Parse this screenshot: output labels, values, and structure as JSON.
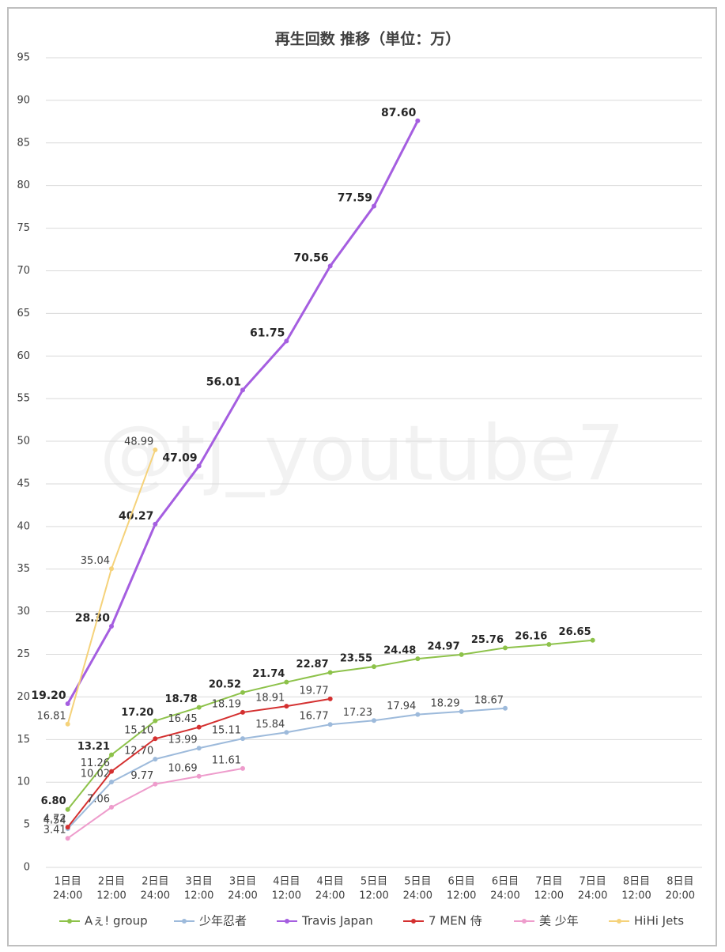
{
  "chart_data": {
    "type": "line",
    "title": "再生回数 推移（単位：万）",
    "watermark": "@tj_youtube7",
    "categories": [
      [
        "1日目",
        "24:00"
      ],
      [
        "2日目",
        "12:00"
      ],
      [
        "2日目",
        "24:00"
      ],
      [
        "3日目",
        "12:00"
      ],
      [
        "3日目",
        "24:00"
      ],
      [
        "4日目",
        "12:00"
      ],
      [
        "4日目",
        "24:00"
      ],
      [
        "5日目",
        "12:00"
      ],
      [
        "5日目",
        "24:00"
      ],
      [
        "6日目",
        "12:00"
      ],
      [
        "6日目",
        "24:00"
      ],
      [
        "7日目",
        "12:00"
      ],
      [
        "7日目",
        "24:00"
      ],
      [
        "8日目",
        "12:00"
      ],
      [
        "8日目",
        "20:00"
      ]
    ],
    "ylim": [
      0,
      95
    ],
    "yticks": [
      0,
      5,
      10,
      15,
      20,
      25,
      30,
      35,
      40,
      45,
      50,
      55,
      60,
      65,
      70,
      75,
      80,
      85,
      90,
      95
    ],
    "grid": true,
    "legend": "bottom",
    "series": [
      {
        "name": "Aぇ! group",
        "color": "#8dc24a",
        "bold_labels": true,
        "width": 2,
        "values": [
          6.8,
          13.21,
          17.2,
          18.78,
          20.52,
          21.74,
          22.87,
          23.55,
          24.48,
          24.97,
          25.76,
          26.16,
          26.65,
          null,
          null
        ],
        "value_labels": [
          "6.80",
          "13.21",
          "17.20",
          "18.78",
          "20.52",
          "21.74",
          "22.87",
          "23.55",
          "24.48",
          "24.97",
          "25.76",
          "26.16",
          "26.65",
          null,
          null
        ]
      },
      {
        "name": "少年忍者",
        "color": "#9dbadb",
        "bold_labels": false,
        "width": 2,
        "values": [
          4.54,
          10.02,
          12.7,
          13.99,
          15.11,
          15.84,
          16.77,
          17.23,
          17.94,
          18.29,
          18.67,
          null,
          null,
          null,
          null
        ],
        "value_labels": [
          "4.54",
          "10.02",
          "12.70",
          "13.99",
          "15.11",
          "15.84",
          "16.77",
          "17.23",
          "17.94",
          "18.29",
          "18.67",
          null,
          null,
          null,
          null
        ]
      },
      {
        "name": "Travis Japan",
        "color": "#a55ee0",
        "bold_labels": true,
        "width": 3,
        "values": [
          19.2,
          28.3,
          40.27,
          47.09,
          56.01,
          61.75,
          70.56,
          77.59,
          87.6,
          null,
          null,
          null,
          null,
          null,
          null
        ],
        "value_labels": [
          "19.20",
          "28.30",
          "40.27",
          "47.09",
          "56.01",
          "61.75",
          "70.56",
          "77.59",
          "87.60",
          null,
          null,
          null,
          null,
          null,
          null
        ]
      },
      {
        "name": "7 MEN 侍",
        "color": "#d43030",
        "bold_labels": false,
        "width": 2,
        "values": [
          4.72,
          11.26,
          15.1,
          16.45,
          18.19,
          18.91,
          19.77,
          null,
          null,
          null,
          null,
          null,
          null,
          null,
          null
        ],
        "value_labels": [
          "4.72",
          "11.26",
          "15.10",
          "16.45",
          "18.19",
          "18.91",
          "19.77",
          null,
          null,
          null,
          null,
          null,
          null,
          null,
          null
        ]
      },
      {
        "name": "美 少年",
        "color": "#ee9ccc",
        "bold_labels": false,
        "width": 2,
        "values": [
          3.41,
          7.06,
          9.77,
          10.69,
          11.61,
          null,
          null,
          null,
          null,
          null,
          null,
          null,
          null,
          null,
          null
        ],
        "value_labels": [
          "3.41",
          "7.06",
          "9.77",
          "10.69",
          "11.61",
          null,
          null,
          null,
          null,
          null,
          null,
          null,
          null,
          null,
          null
        ]
      },
      {
        "name": "HiHi Jets",
        "color": "#f5d27a",
        "bold_labels": false,
        "width": 2,
        "values": [
          16.81,
          35.04,
          48.99,
          null,
          null,
          null,
          null,
          null,
          null,
          null,
          null,
          null,
          null,
          null,
          null
        ],
        "value_labels": [
          "16.81",
          "35.04",
          "48.99",
          null,
          null,
          null,
          null,
          null,
          null,
          null,
          null,
          null,
          null,
          null,
          null
        ]
      }
    ]
  }
}
